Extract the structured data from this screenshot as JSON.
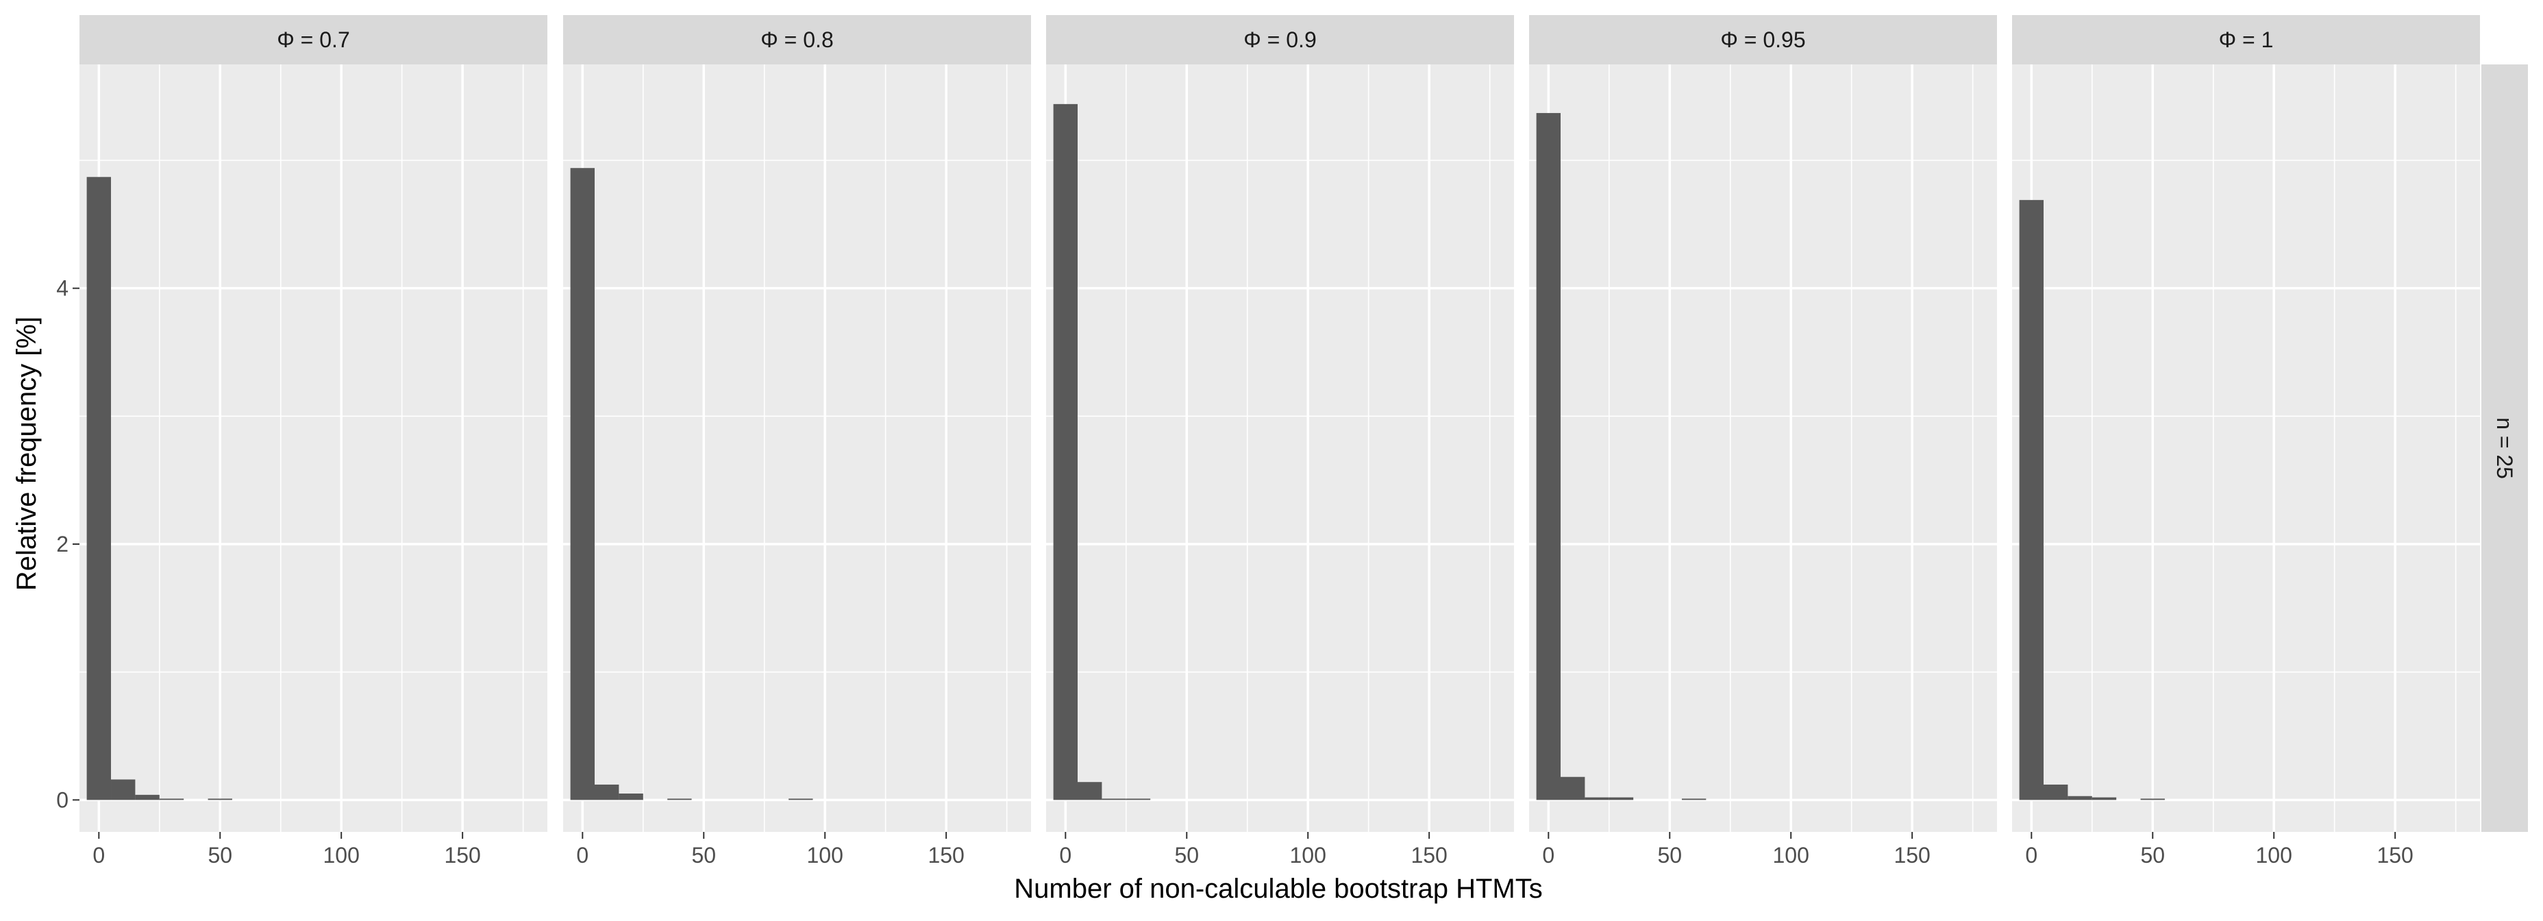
{
  "chart_data": {
    "type": "bar",
    "xlabel": "Number of non-calculable bootstrap HTMTs",
    "ylabel": "Relative frequency [%]",
    "row_strip": "n = 25",
    "xlim": [
      -8,
      185
    ],
    "ylim": [
      -0.25,
      5.75
    ],
    "xticks": [
      0,
      50,
      100,
      150
    ],
    "yticks": [
      0,
      2,
      4
    ],
    "bin_width": 10,
    "grid": true,
    "colors": {
      "bar": "#595959",
      "panel": "#ebebeb",
      "strip": "#d9d9d9",
      "grid": "#ffffff"
    },
    "panels": [
      {
        "label": "Φ = 0.7",
        "bins": [
          0,
          10,
          20,
          30,
          50
        ],
        "values": [
          4.87,
          0.16,
          0.04,
          0.01,
          0.01
        ]
      },
      {
        "label": "Φ = 0.8",
        "bins": [
          0,
          10,
          20,
          40,
          90
        ],
        "values": [
          4.94,
          0.12,
          0.05,
          0.01,
          0.01
        ]
      },
      {
        "label": "Φ = 0.9",
        "bins": [
          0,
          10,
          20,
          30
        ],
        "values": [
          5.44,
          0.14,
          0.01,
          0.01
        ]
      },
      {
        "label": "Φ = 0.95",
        "bins": [
          0,
          10,
          20,
          30,
          60
        ],
        "values": [
          5.37,
          0.18,
          0.02,
          0.02,
          0.01
        ]
      },
      {
        "label": "Φ = 1",
        "bins": [
          0,
          10,
          20,
          30,
          50
        ],
        "values": [
          4.69,
          0.12,
          0.03,
          0.02,
          0.01
        ]
      }
    ]
  }
}
